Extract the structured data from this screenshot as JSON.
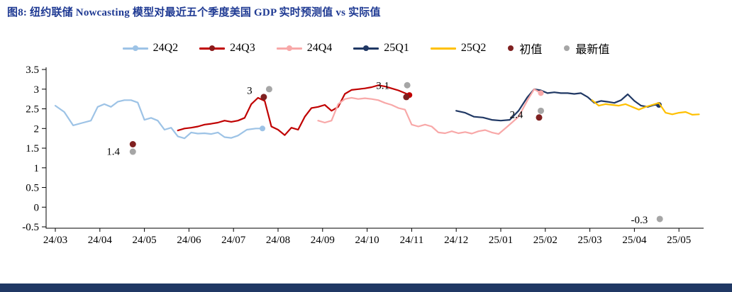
{
  "title": "图8: 纽约联储 Nowcasting 模型对最近五个季度美国 GDP 实时预测值 vs 实际值",
  "colors": {
    "title": "#1F3A93",
    "footer_bar": "#203864",
    "axis": "#000000",
    "series_24q2": "#9DC3E6",
    "series_24q3": "#C00000",
    "series_24q4": "#F8A8A8",
    "series_25q1": "#203864",
    "series_25q2": "#FFC000",
    "initial_dot": "#7F2020",
    "latest_dot": "#A6A6A6"
  },
  "legend": {
    "items": [
      {
        "key": "24q2",
        "label": "24Q2",
        "type": "line-dot",
        "color": "#9DC3E6",
        "dot": "#9DC3E6"
      },
      {
        "key": "24q3",
        "label": "24Q3",
        "type": "line-dot",
        "color": "#C00000",
        "dot": "#8B1A1A"
      },
      {
        "key": "24q4",
        "label": "24Q4",
        "type": "line-dot",
        "color": "#F8A8A8",
        "dot": "#F8A8A8"
      },
      {
        "key": "25q1",
        "label": "25Q1",
        "type": "line-dot",
        "color": "#203864",
        "dot": "#203864"
      },
      {
        "key": "25q2",
        "label": "25Q2",
        "type": "line",
        "color": "#FFC000",
        "dot": "#FFC000"
      },
      {
        "key": "chuzhi",
        "label": "初值",
        "type": "dot",
        "color": "#7F2020",
        "dot": "#7F2020"
      },
      {
        "key": "zuixinzhi",
        "label": "最新值",
        "type": "dot",
        "color": "#A6A6A6",
        "dot": "#A6A6A6"
      }
    ]
  },
  "chart_data": {
    "type": "line",
    "title": "纽约联储 Nowcasting 模型对最近五个季度美国 GDP 实时预测值 vs 实际值",
    "xlabel": "",
    "ylabel": "",
    "ylim": [
      -0.5,
      3.5
    ],
    "grid": false,
    "legend_position": "top",
    "x_tick_labels": [
      "24/03",
      "24/04",
      "24/05",
      "24/06",
      "24/07",
      "24/08",
      "24/09",
      "24/10",
      "24/11",
      "24/12",
      "25/01",
      "25/02",
      "25/03",
      "25/04",
      "25/05"
    ],
    "y_ticks": [
      {
        "v": 3.5,
        "label": "3.5"
      },
      {
        "v": 3.0,
        "label": "3"
      },
      {
        "v": 2.5,
        "label": "2.5"
      },
      {
        "v": 2.0,
        "label": "2"
      },
      {
        "v": 1.5,
        "label": "1.5"
      },
      {
        "v": 1.0,
        "label": "1"
      },
      {
        "v": 0.5,
        "label": "0.5"
      },
      {
        "v": 0.0,
        "label": "0"
      },
      {
        "v": -0.5,
        "label": "-0.5"
      }
    ],
    "series": [
      {
        "name": "24Q2",
        "color": "#9DC3E6",
        "end_marker": true,
        "points": [
          [
            0,
            2.58
          ],
          [
            0.2,
            2.42
          ],
          [
            0.4,
            2.08
          ],
          [
            0.6,
            2.14
          ],
          [
            0.8,
            2.2
          ],
          [
            0.95,
            2.55
          ],
          [
            1.1,
            2.62
          ],
          [
            1.25,
            2.55
          ],
          [
            1.4,
            2.68
          ],
          [
            1.55,
            2.72
          ],
          [
            1.7,
            2.72
          ],
          [
            1.85,
            2.66
          ],
          [
            2.0,
            2.22
          ],
          [
            2.15,
            2.27
          ],
          [
            2.3,
            2.2
          ],
          [
            2.45,
            1.97
          ],
          [
            2.6,
            2.02
          ],
          [
            2.75,
            1.8
          ],
          [
            2.9,
            1.75
          ],
          [
            3.05,
            1.9
          ],
          [
            3.2,
            1.87
          ],
          [
            3.35,
            1.88
          ],
          [
            3.5,
            1.86
          ],
          [
            3.65,
            1.9
          ],
          [
            3.8,
            1.78
          ],
          [
            3.95,
            1.76
          ],
          [
            4.1,
            1.82
          ],
          [
            4.3,
            1.97
          ],
          [
            4.5,
            2.0
          ],
          [
            4.65,
            2.0
          ]
        ]
      },
      {
        "name": "24Q3",
        "color": "#C00000",
        "end_marker": true,
        "points": [
          [
            2.75,
            1.95
          ],
          [
            2.9,
            2.0
          ],
          [
            3.05,
            2.02
          ],
          [
            3.2,
            2.05
          ],
          [
            3.35,
            2.1
          ],
          [
            3.5,
            2.12
          ],
          [
            3.65,
            2.15
          ],
          [
            3.8,
            2.2
          ],
          [
            3.95,
            2.17
          ],
          [
            4.1,
            2.2
          ],
          [
            4.25,
            2.27
          ],
          [
            4.4,
            2.62
          ],
          [
            4.55,
            2.78
          ],
          [
            4.7,
            2.7
          ],
          [
            4.85,
            2.05
          ],
          [
            5.0,
            1.97
          ],
          [
            5.15,
            1.83
          ],
          [
            5.3,
            2.02
          ],
          [
            5.45,
            1.97
          ],
          [
            5.6,
            2.3
          ],
          [
            5.75,
            2.52
          ],
          [
            5.9,
            2.55
          ],
          [
            6.05,
            2.6
          ],
          [
            6.2,
            2.45
          ],
          [
            6.35,
            2.55
          ],
          [
            6.5,
            2.88
          ],
          [
            6.65,
            2.98
          ],
          [
            6.8,
            3.0
          ],
          [
            6.95,
            3.02
          ],
          [
            7.1,
            3.05
          ],
          [
            7.25,
            3.1
          ],
          [
            7.4,
            3.07
          ],
          [
            7.55,
            3.02
          ],
          [
            7.7,
            2.97
          ],
          [
            7.85,
            2.9
          ],
          [
            7.95,
            2.85
          ]
        ]
      },
      {
        "name": "25Q1",
        "color": "#203864",
        "end_marker": true,
        "points": [
          [
            9.0,
            2.45
          ],
          [
            9.2,
            2.4
          ],
          [
            9.4,
            2.3
          ],
          [
            9.6,
            2.28
          ],
          [
            9.8,
            2.22
          ],
          [
            10.0,
            2.2
          ],
          [
            10.2,
            2.22
          ],
          [
            10.4,
            2.45
          ],
          [
            10.6,
            2.8
          ],
          [
            10.75,
            3.0
          ],
          [
            10.9,
            2.97
          ],
          [
            11.05,
            2.9
          ],
          [
            11.2,
            2.92
          ],
          [
            11.35,
            2.9
          ],
          [
            11.5,
            2.9
          ],
          [
            11.65,
            2.88
          ],
          [
            11.8,
            2.9
          ],
          [
            11.95,
            2.8
          ],
          [
            12.1,
            2.65
          ],
          [
            12.25,
            2.7
          ],
          [
            12.4,
            2.68
          ],
          [
            12.55,
            2.65
          ],
          [
            12.7,
            2.72
          ],
          [
            12.85,
            2.87
          ],
          [
            13.0,
            2.7
          ],
          [
            13.15,
            2.58
          ],
          [
            13.3,
            2.55
          ],
          [
            13.45,
            2.6
          ],
          [
            13.55,
            2.6
          ]
        ]
      },
      {
        "name": "24Q4",
        "color": "#F8A8A8",
        "end_marker": true,
        "points": [
          [
            5.9,
            2.2
          ],
          [
            6.05,
            2.15
          ],
          [
            6.2,
            2.2
          ],
          [
            6.35,
            2.62
          ],
          [
            6.5,
            2.75
          ],
          [
            6.65,
            2.78
          ],
          [
            6.8,
            2.75
          ],
          [
            6.95,
            2.77
          ],
          [
            7.1,
            2.75
          ],
          [
            7.25,
            2.72
          ],
          [
            7.4,
            2.65
          ],
          [
            7.55,
            2.6
          ],
          [
            7.7,
            2.52
          ],
          [
            7.85,
            2.48
          ],
          [
            8.0,
            2.1
          ],
          [
            8.15,
            2.05
          ],
          [
            8.3,
            2.1
          ],
          [
            8.45,
            2.05
          ],
          [
            8.6,
            1.9
          ],
          [
            8.75,
            1.88
          ],
          [
            8.9,
            1.93
          ],
          [
            9.05,
            1.88
          ],
          [
            9.2,
            1.91
          ],
          [
            9.35,
            1.87
          ],
          [
            9.5,
            1.93
          ],
          [
            9.65,
            1.96
          ],
          [
            9.8,
            1.9
          ],
          [
            9.95,
            1.86
          ],
          [
            10.15,
            2.05
          ],
          [
            10.4,
            2.3
          ],
          [
            10.6,
            2.72
          ],
          [
            10.75,
            3.0
          ],
          [
            10.9,
            2.9
          ]
        ]
      },
      {
        "name": "25Q2",
        "color": "#FFC000",
        "end_marker": false,
        "points": [
          [
            12.05,
            2.72
          ],
          [
            12.2,
            2.58
          ],
          [
            12.35,
            2.62
          ],
          [
            12.5,
            2.6
          ],
          [
            12.65,
            2.58
          ],
          [
            12.8,
            2.62
          ],
          [
            12.95,
            2.55
          ],
          [
            13.1,
            2.48
          ],
          [
            13.25,
            2.55
          ],
          [
            13.4,
            2.6
          ],
          [
            13.55,
            2.65
          ],
          [
            13.7,
            2.4
          ],
          [
            13.85,
            2.36
          ],
          [
            14.0,
            2.4
          ],
          [
            14.15,
            2.42
          ],
          [
            14.3,
            2.35
          ],
          [
            14.45,
            2.36
          ]
        ]
      }
    ],
    "actual_dots": [
      {
        "name": "initial-24q1",
        "m": 1.74,
        "v": 1.6,
        "color": "#7F2020"
      },
      {
        "name": "latest-24q1",
        "m": 1.74,
        "v": 1.41,
        "color": "#A6A6A6"
      },
      {
        "name": "initial-24q2",
        "m": 4.68,
        "v": 2.8,
        "color": "#7F2020"
      },
      {
        "name": "latest-24q2",
        "m": 4.8,
        "v": 3.0,
        "color": "#A6A6A6"
      },
      {
        "name": "initial-24q3",
        "m": 7.88,
        "v": 2.8,
        "color": "#7F2020"
      },
      {
        "name": "latest-24q3",
        "m": 7.9,
        "v": 3.1,
        "color": "#A6A6A6"
      },
      {
        "name": "initial-24q4",
        "m": 10.86,
        "v": 2.28,
        "color": "#7F2020"
      },
      {
        "name": "latest-24q4",
        "m": 10.9,
        "v": 2.45,
        "color": "#A6A6A6"
      },
      {
        "name": "latest-25q1",
        "m": 13.57,
        "v": -0.3,
        "color": "#A6A6A6"
      }
    ],
    "annotations": [
      {
        "text": "1.4",
        "m": 1.45,
        "v": 1.42
      },
      {
        "text": "3",
        "m": 4.42,
        "v": 2.97
      },
      {
        "text": "3.1",
        "m": 7.5,
        "v": 3.1
      },
      {
        "text": "2.4",
        "m": 10.5,
        "v": 2.36
      },
      {
        "text": "-0.3",
        "m": 13.3,
        "v": -0.32
      }
    ]
  }
}
